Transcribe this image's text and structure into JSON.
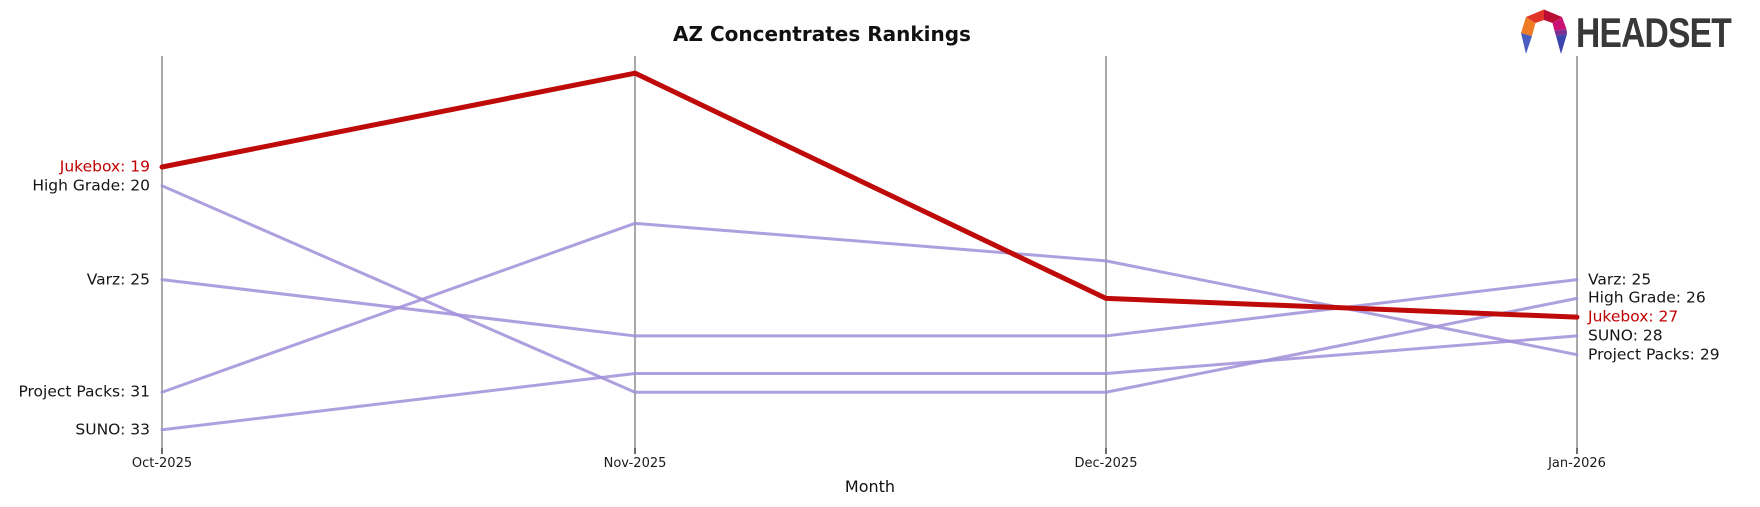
{
  "title": "AZ Concentrates Rankings",
  "xlabel": "Month",
  "logo": {
    "text": "HEADSET"
  },
  "colors": {
    "highlight": "#bf0a0a",
    "highlight_label": "#c00000",
    "series_default": "#a08fd8",
    "axis": "#a9a9a9",
    "tick": "#3a3a3a",
    "label_text": "#151515"
  },
  "chart_data": {
    "type": "line",
    "subtype": "bump-rank-chart",
    "title": "AZ Concentrates Rankings",
    "xlabel": "Month",
    "ylabel": "",
    "x": [
      "Oct-2025",
      "Nov-2025",
      "Dec-2025",
      "Jan-2026"
    ],
    "y_axis_note": "rank, inverted (lower rank number = higher position)",
    "ylim": [
      13,
      34
    ],
    "grid": "vertical axis line per month, no horizontal grid",
    "legend": "none (direct labels at line endpoints)",
    "series": [
      {
        "name": "Jukebox",
        "values": [
          19,
          14,
          26,
          27
        ],
        "highlight": true
      },
      {
        "name": "High Grade",
        "values": [
          20,
          31,
          31,
          26
        ],
        "highlight": false
      },
      {
        "name": "Varz",
        "values": [
          25,
          28,
          28,
          25
        ],
        "highlight": false
      },
      {
        "name": "Project Packs",
        "values": [
          31,
          22,
          24,
          29
        ],
        "highlight": false
      },
      {
        "name": "SUNO",
        "values": [
          33,
          30,
          30,
          28
        ],
        "highlight": false
      }
    ],
    "left_labels": [
      "Jukebox: 19",
      "High Grade: 20",
      "Varz: 25",
      "Project Packs: 31",
      "SUNO: 33"
    ],
    "right_labels": [
      "Varz: 25",
      "High Grade: 26",
      "Jukebox: 27",
      "SUNO: 28",
      "Project Packs: 29"
    ]
  }
}
